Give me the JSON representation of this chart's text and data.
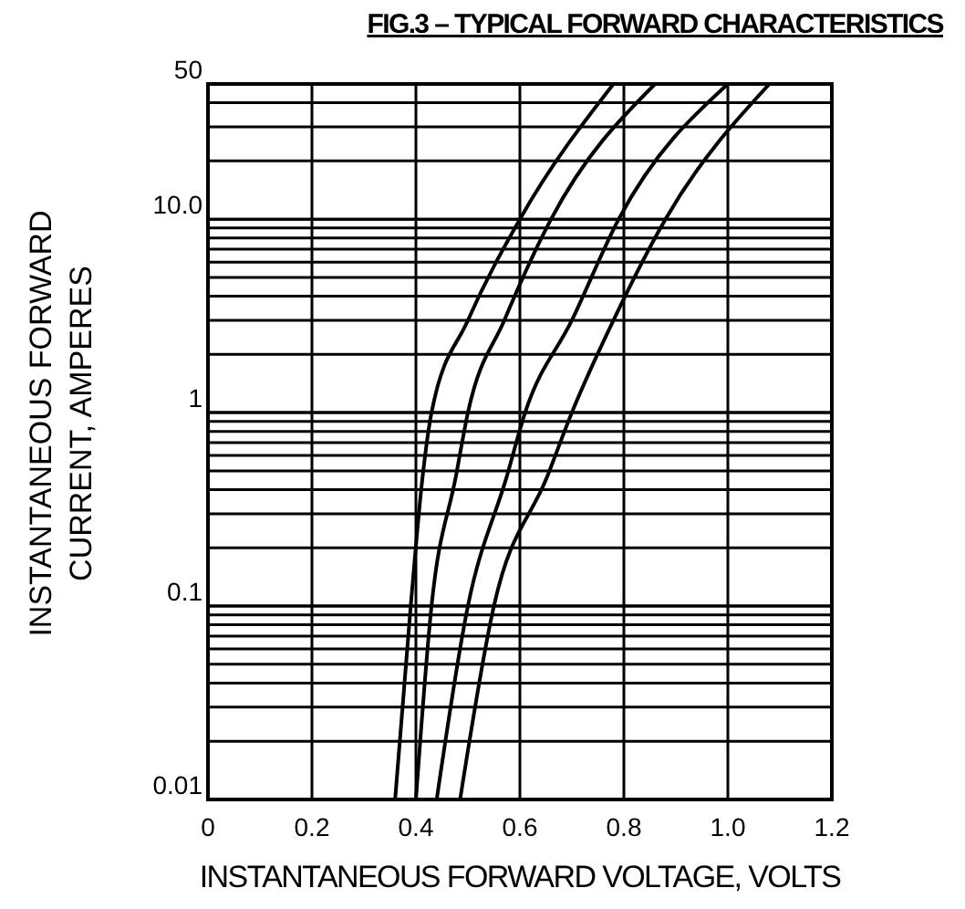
{
  "chart_data": {
    "type": "line",
    "title": "FIG.3 – TYPICAL FORWARD CHARACTERISTICS",
    "xlabel": "INSTANTANEOUS FORWARD VOLTAGE, VOLTS",
    "ylabel": "INSTANTANEOUS FORWARD\nCURRENT, AMPERES",
    "xlim": [
      0,
      1.2
    ],
    "xticks": [
      0,
      0.2,
      0.4,
      0.6,
      0.8,
      {
        "value": 1,
        "label": "1.0"
      },
      1.2
    ],
    "ylim": [
      0.01,
      50
    ],
    "yticks": [
      0.01,
      0.1,
      1,
      {
        "value": 10,
        "label": "10.0"
      },
      50
    ],
    "log": "y",
    "grid": true,
    "marker": "none",
    "line_style": "solid",
    "series": [
      {
        "color": "#000000",
        "x": [
          0.36,
          0.39,
          0.413,
          0.43,
          0.5,
          0.6,
          0.78
        ],
        "values": [
          0.01,
          0.1,
          0.47,
          1,
          3,
          10,
          50
        ]
      },
      {
        "color": "#000000",
        "x": [
          0.4,
          0.43,
          0.477,
          0.5,
          0.57,
          0.66,
          0.86
        ],
        "values": [
          0.01,
          0.1,
          0.47,
          1,
          3,
          10,
          50
        ]
      },
      {
        "color": "#000000",
        "x": [
          0.44,
          0.5,
          0.575,
          0.61,
          0.7,
          0.79,
          1.0
        ],
        "values": [
          0.01,
          0.1,
          0.47,
          1,
          3,
          10,
          50
        ]
      },
      {
        "color": "#000000",
        "x": [
          0.485,
          0.55,
          0.653,
          0.7,
          0.78,
          0.88,
          1.08
        ],
        "values": [
          0.01,
          0.1,
          0.47,
          1,
          3,
          10,
          50
        ]
      }
    ]
  }
}
